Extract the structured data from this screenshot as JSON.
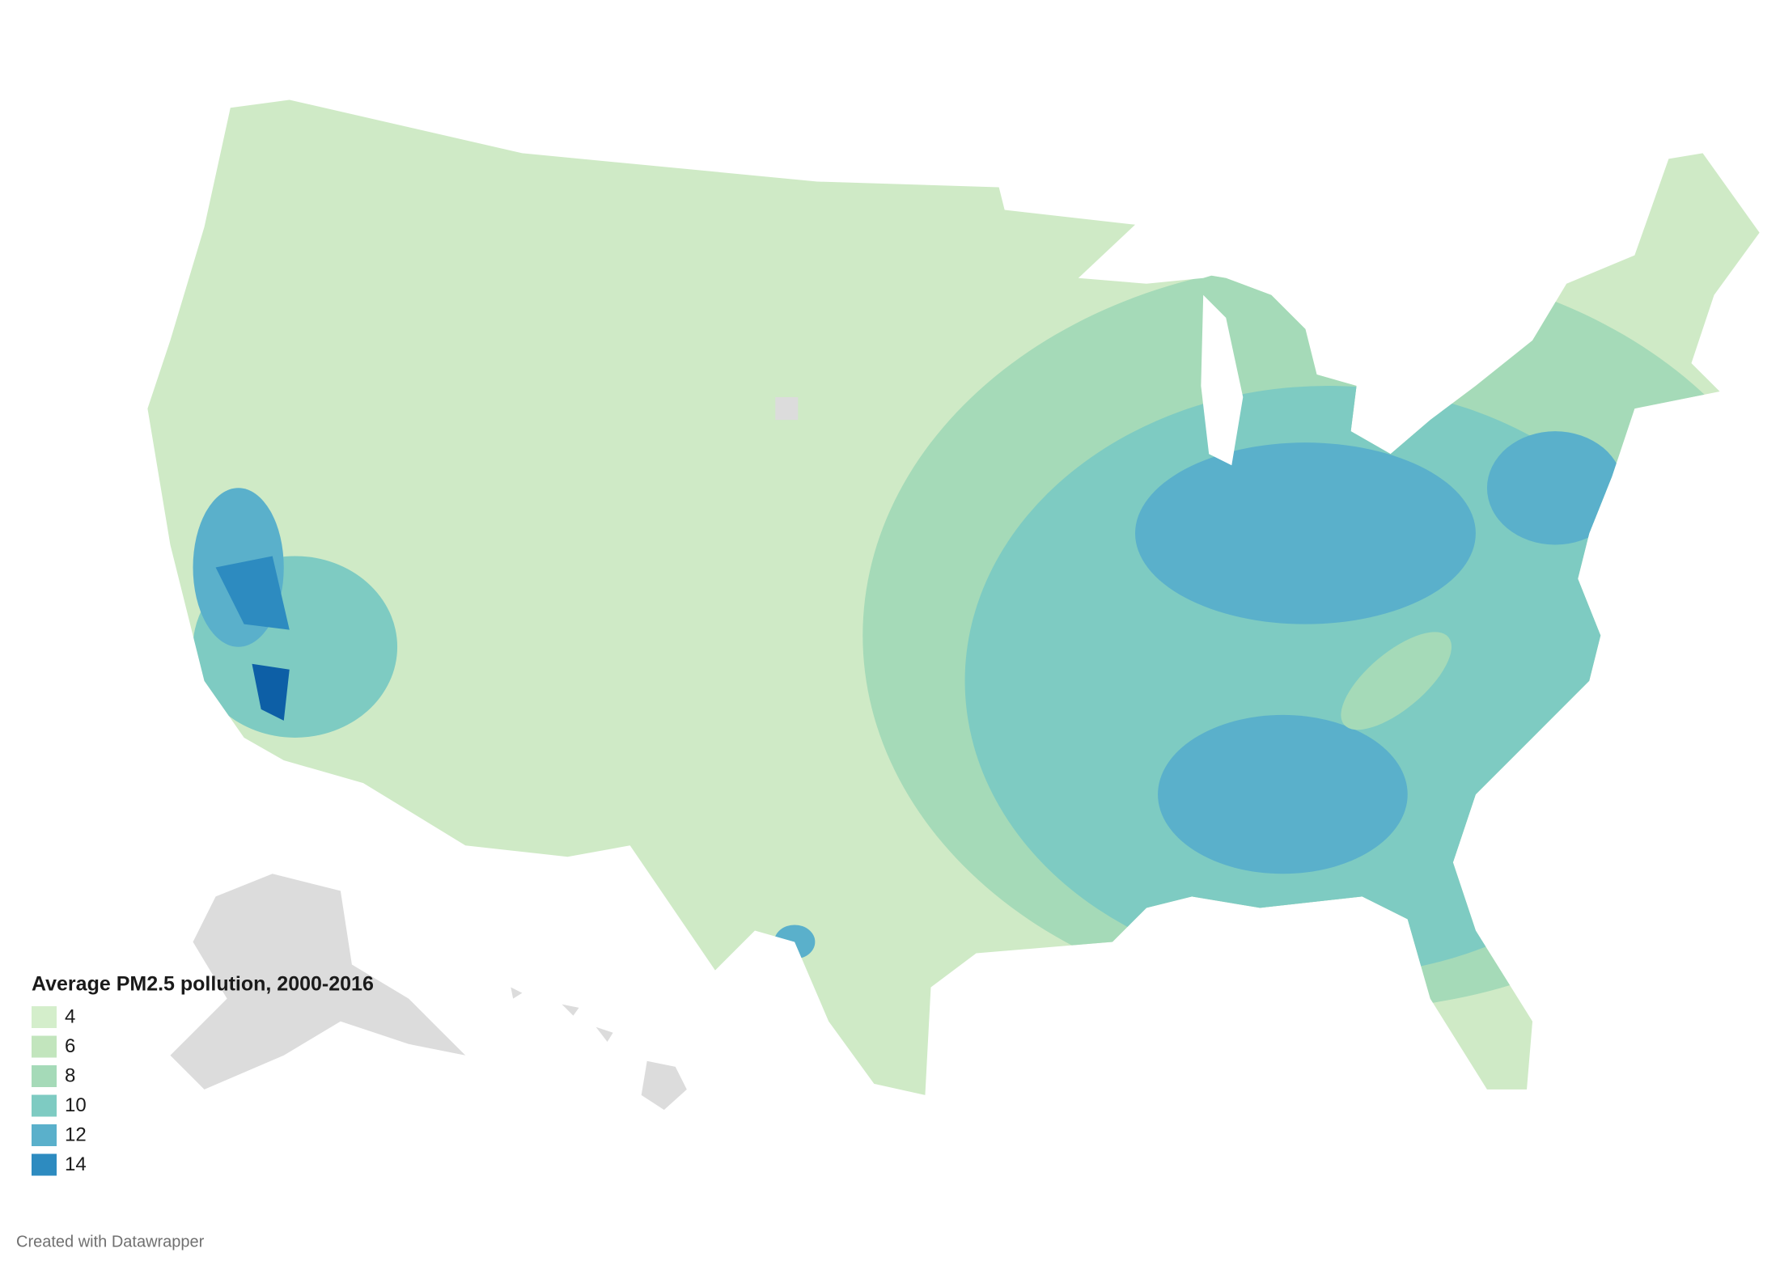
{
  "legend": {
    "title": "Average PM2.5 pollution, 2000-2016",
    "items": [
      {
        "label": 4,
        "color": "#d4eecb"
      },
      {
        "label": 6,
        "color": "#c2e5bd"
      },
      {
        "label": 8,
        "color": "#a5dab8"
      },
      {
        "label": 10,
        "color": "#7ecbc2"
      },
      {
        "label": 12,
        "color": "#5ab0cb"
      },
      {
        "label": 14,
        "color": "#2d8bc0"
      }
    ]
  },
  "footer": "Created with Datawrapper"
}
